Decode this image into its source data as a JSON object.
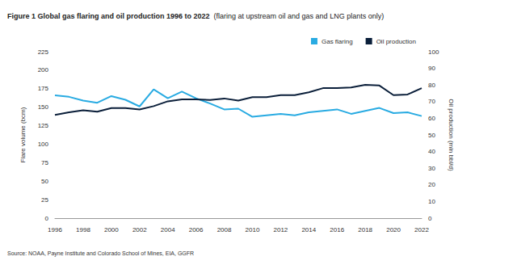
{
  "chart_data": {
    "type": "line",
    "title": "Figure 1 Global gas flaring and oil production 1996 to 2022",
    "subtitle": "(flaring at upstream oil and gas and LNG plants only)",
    "annotations": [
      "Source: NOAA, Payne Institute and Colorado School of Mines, EIA, GGFR"
    ],
    "y_label": "Flare volume (bcm)",
    "y2_label": "Oil production (mln bbl/d)",
    "categories": [
      "1996",
      null,
      "1998",
      null,
      "2000",
      null,
      "2002",
      null,
      "2004",
      null,
      "2006",
      null,
      "2008",
      null,
      "2010",
      null,
      "2012",
      null,
      "2014",
      null,
      "2016",
      null,
      "2018",
      null,
      "2020",
      null,
      "2022"
    ],
    "series": [
      {
        "name": "Gas flaring",
        "color": "#29abe2",
        "values": [
          166,
          164,
          159,
          156,
          165,
          160,
          151,
          174,
          162,
          171,
          162,
          155,
          147,
          148,
          137,
          139,
          141,
          139,
          143,
          145,
          147,
          141,
          145,
          149,
          142,
          143,
          138
        ]
      },
      {
        "name": "Oil production",
        "color": "#0b1f3a",
        "axis": "y2",
        "values": [
          62,
          63.6,
          64.8,
          64,
          66.1,
          66.1,
          65.3,
          67.3,
          70.2,
          71.4,
          71.4,
          71,
          71.9,
          70.6,
          72.7,
          72.7,
          73.9,
          73.9,
          75.6,
          78.1,
          78.1,
          78.5,
          80.1,
          79.7,
          73.9,
          74.3,
          78.1
        ]
      }
    ],
    "ylim": [
      0,
      225
    ],
    "yticks": [
      0,
      25,
      50,
      75,
      100,
      125,
      150,
      175,
      200,
      225
    ],
    "y2lim": [
      0,
      100
    ],
    "y2ticks": [
      0,
      10,
      20,
      30,
      40,
      50,
      60,
      70,
      80,
      90,
      100
    ],
    "grid": false,
    "legend": "upper right"
  }
}
